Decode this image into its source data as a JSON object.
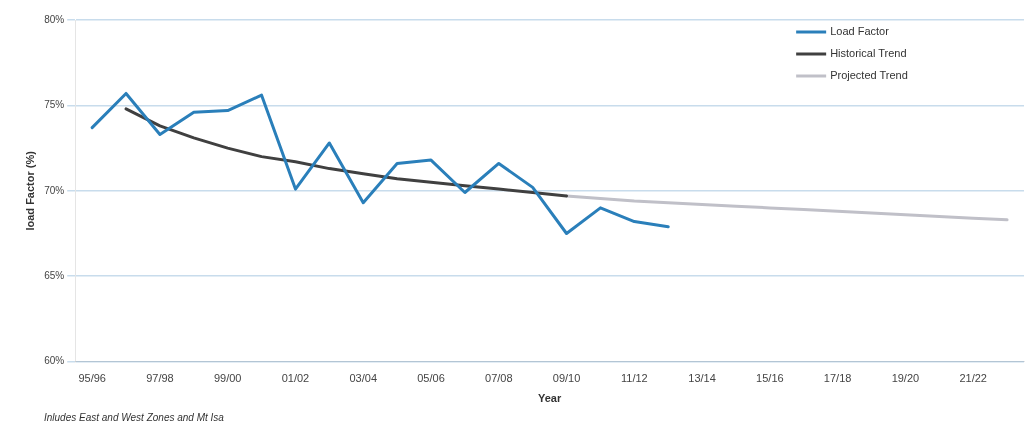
{
  "chart_data": {
    "type": "line",
    "xlabel": "Year",
    "ylabel": "load Factor (%)",
    "categories": [
      "95/96",
      null,
      "97/98",
      null,
      "99/00",
      null,
      "01/02",
      null,
      "03/04",
      null,
      "05/06",
      null,
      "07/08",
      null,
      "09/10",
      null,
      "11/12",
      null,
      "13/14",
      null,
      "15/16",
      null,
      "17/18",
      null,
      "19/20",
      null,
      "21/22",
      null
    ],
    "series": [
      {
        "name": "Load Factor",
        "color": "#2a7fba",
        "values": [
          73.7,
          75.7,
          73.3,
          74.6,
          74.7,
          75.6,
          70.1,
          72.8,
          69.3,
          71.6,
          71.8,
          69.9,
          71.6,
          70.2,
          67.5,
          69.0,
          68.2,
          67.9,
          null,
          null,
          null,
          null,
          null,
          null,
          null,
          null,
          null,
          null
        ]
      },
      {
        "name": "Historical Trend",
        "color": "#404040",
        "values": [
          null,
          74.8,
          73.8,
          73.1,
          72.5,
          72.0,
          71.7,
          71.3,
          71.0,
          70.7,
          70.5,
          70.3,
          70.1,
          69.9,
          69.7,
          null,
          null,
          null,
          null,
          null,
          null,
          null,
          null,
          null,
          null,
          null,
          null,
          null
        ]
      },
      {
        "name": "Projected Trend",
        "color": "#c0c0c8",
        "values": [
          null,
          null,
          null,
          null,
          null,
          null,
          null,
          null,
          null,
          null,
          null,
          null,
          null,
          null,
          69.7,
          69.55,
          69.4,
          69.3,
          69.2,
          69.1,
          69.0,
          68.9,
          68.8,
          68.7,
          68.6,
          68.5,
          68.4,
          68.3
        ]
      }
    ],
    "ylim": [
      60,
      80
    ],
    "yticks": [
      {
        "value": 60,
        "label": "60%"
      },
      {
        "value": 65,
        "label": "65%"
      },
      {
        "value": 70,
        "label": "70%"
      },
      {
        "value": 75,
        "label": "75%"
      },
      {
        "value": 80,
        "label": "80%"
      }
    ],
    "grid": "y",
    "legend": "top right",
    "marker": "none",
    "line_style": "solid",
    "annotations": [
      "Inludes East and West Zones and Mt Isa"
    ]
  }
}
